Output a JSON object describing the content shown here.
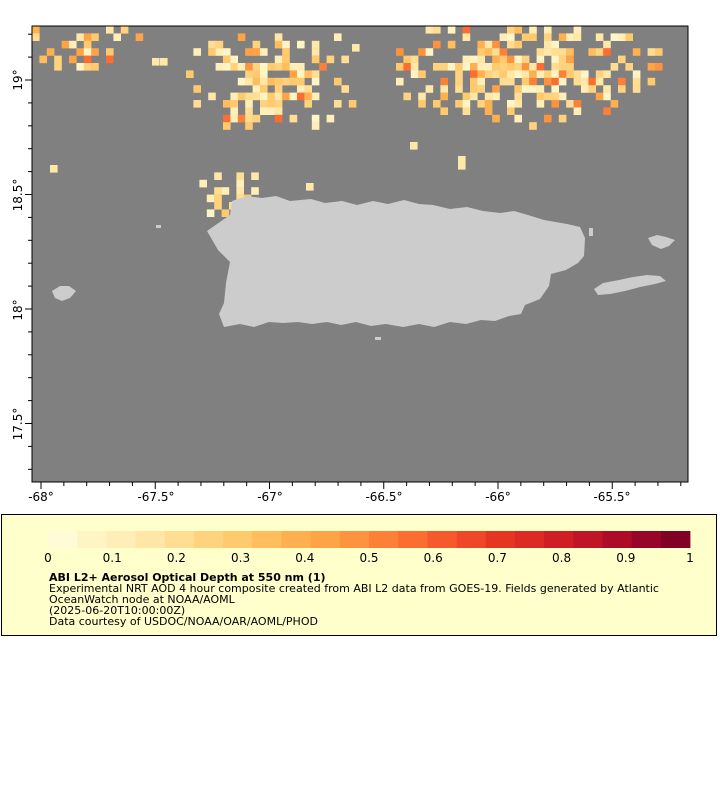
{
  "map": {
    "longitude_ticks": [
      "-68°",
      "-67.5°",
      "-67°",
      "-66.5°",
      "-66°",
      "-65.5°"
    ],
    "latitude_ticks": [
      "19°",
      "18.5°",
      "18°",
      "17.5°"
    ],
    "colors": {
      "ocean": "#808080",
      "land": "#cccccc",
      "frame": "#000000",
      "background": "#ffffff"
    }
  },
  "legend": {
    "background_color": "#ffffcc",
    "colorbar_ticks": [
      "0",
      "0.1",
      "0.2",
      "0.3",
      "0.4",
      "0.5",
      "0.6",
      "0.7",
      "0.8",
      "0.9",
      "1"
    ],
    "colorbar_colors": [
      "#fffbd6",
      "#fff4c4",
      "#ffeeb8",
      "#ffe7a8",
      "#ffdd92",
      "#ffd27e",
      "#ffc96e",
      "#ffbd5e",
      "#feb051",
      "#fea346",
      "#fd923f",
      "#fc8038",
      "#fb6d31",
      "#f65a2c",
      "#ef4727",
      "#e63622",
      "#dd2a22",
      "#cf1e24",
      "#bf1526",
      "#ac0c28",
      "#980529",
      "#800026"
    ],
    "title": "ABI L2+ Aerosol Optical Depth at 550 nm (1)",
    "lines": [
      "Experimental NRT AOD 4 hour composite created from ABI L2 data from GOES-19. Fields generated by Atlantic",
      "OceanWatch node at NOAA/AOML",
      "(2025-06-20T10:00:00Z)",
      "Data courtesy of USDOC/NOAA/OAR/AOML/PHOD"
    ]
  }
}
